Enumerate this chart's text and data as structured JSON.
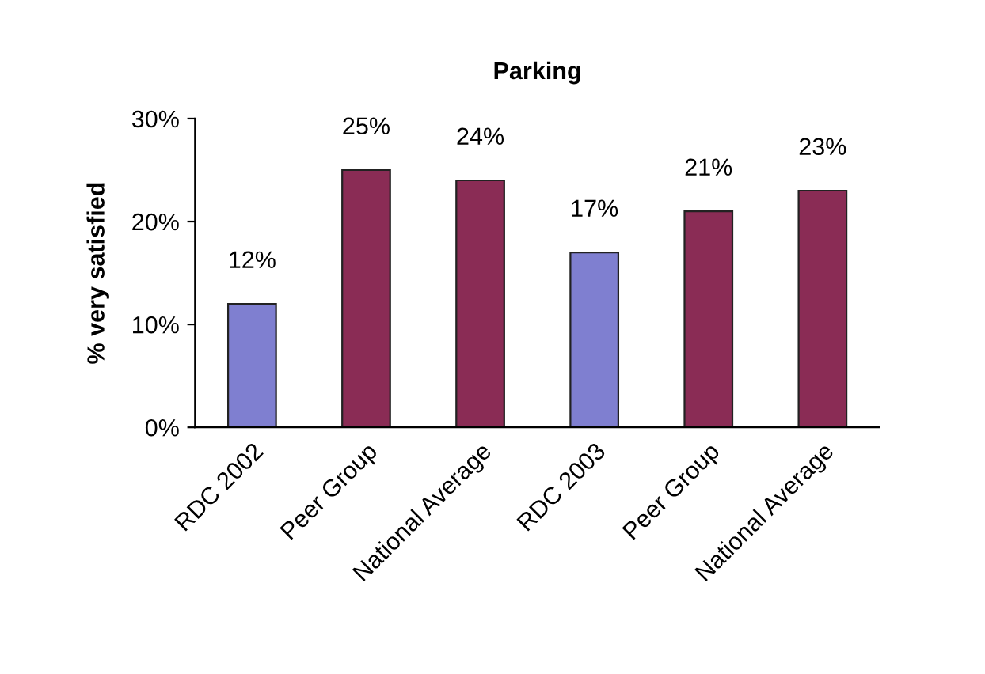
{
  "chart_data": {
    "type": "bar",
    "title": "Parking",
    "ylabel": "% very satisfied",
    "categories": [
      "RDC 2002",
      "Peer Group",
      "National Average",
      "RDC 2003",
      "Peer Group",
      "National Average"
    ],
    "values": [
      12,
      25,
      24,
      17,
      21,
      23
    ],
    "colors": [
      "#7f7fd0",
      "#8a2c55",
      "#8a2c55",
      "#7f7fd0",
      "#8a2c55",
      "#8a2c55"
    ],
    "value_labels": [
      "12%",
      "25%",
      "24%",
      "17%",
      "21%",
      "23%"
    ],
    "ylim": [
      0,
      30
    ],
    "yticks": [
      {
        "value": 0,
        "label": "0%"
      },
      {
        "value": 10,
        "label": "10%"
      },
      {
        "value": 20,
        "label": "20%"
      },
      {
        "value": 30,
        "label": "30%"
      }
    ],
    "grid": false,
    "legend": false
  }
}
